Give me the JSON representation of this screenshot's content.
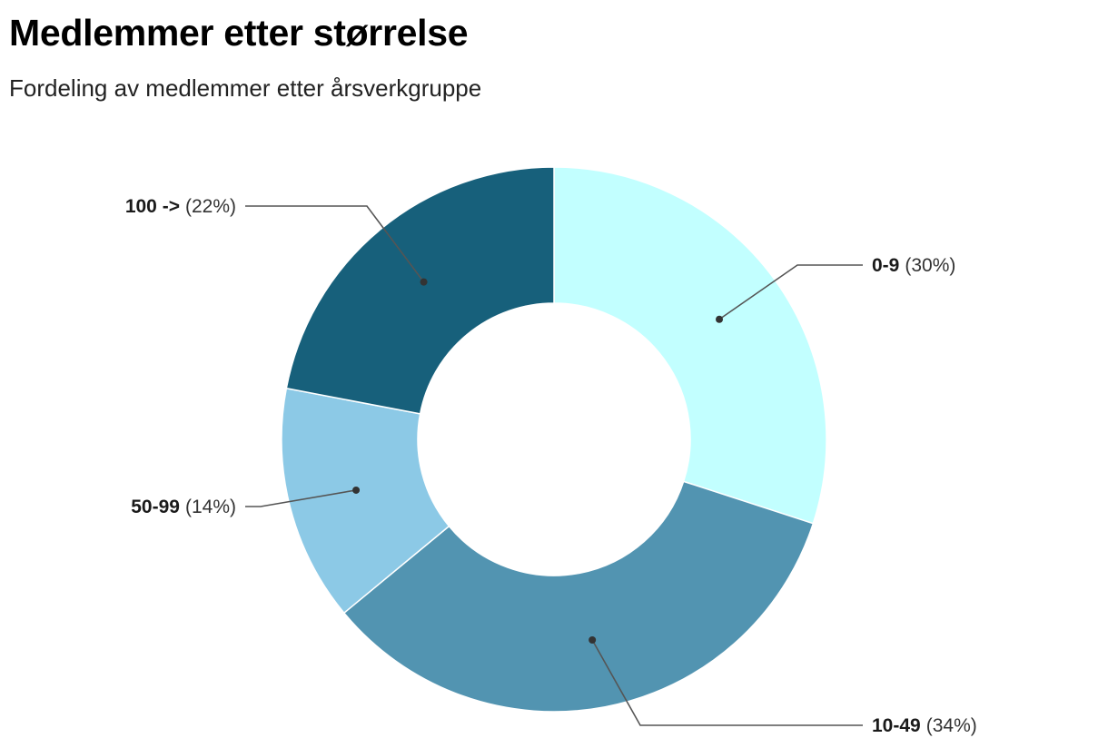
{
  "title": "Medlemmer etter størrelse",
  "subtitle": "Fordeling av medlemmer etter årsverkgruppe",
  "chart_data": {
    "type": "pie",
    "donut": true,
    "slices": [
      {
        "label": "0-9",
        "value": 30,
        "display": "(30%)",
        "color": "#c2ffff"
      },
      {
        "label": "10-49",
        "value": 34,
        "display": "(34%)",
        "color": "#5294b1"
      },
      {
        "label": "50-99",
        "value": 14,
        "display": "(14%)",
        "color": "#8cc9e6"
      },
      {
        "label": "100 ->",
        "value": 22,
        "display": "(22%)",
        "color": "#17607b"
      }
    ]
  }
}
